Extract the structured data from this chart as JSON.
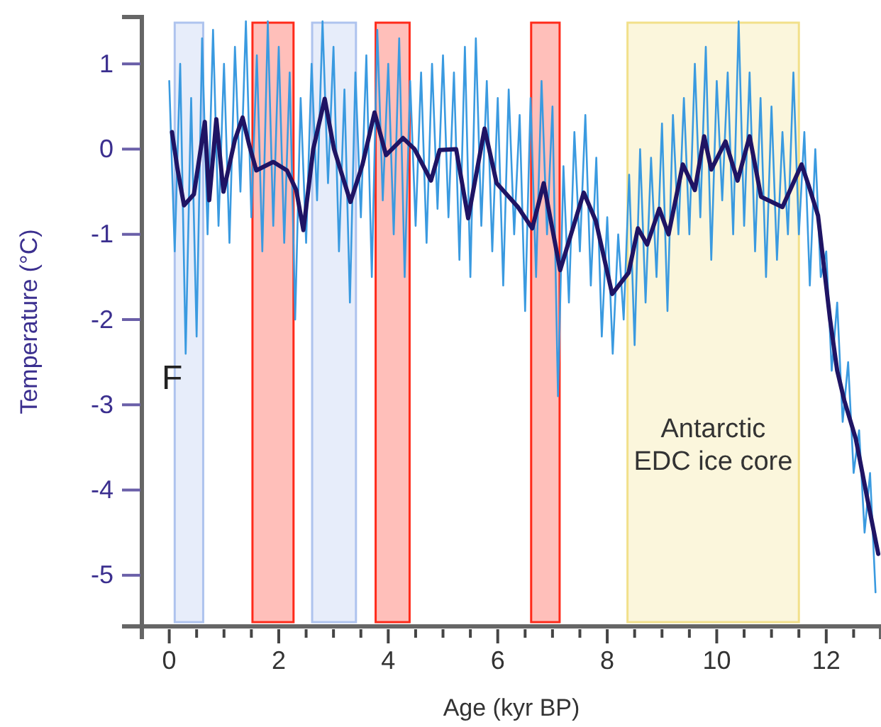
{
  "chart_data": {
    "type": "line",
    "xlabel": "Age (kyr BP)",
    "ylabel": "Temperature (°C)",
    "xlim": [
      -0.5,
      13
    ],
    "ylim": [
      -5.6,
      1.55
    ],
    "xticks": [
      0,
      {
        "value": 0.5,
        "label": null
      },
      {
        "value": 1,
        "label": null
      },
      {
        "value": 1.5,
        "label": null
      },
      2,
      {
        "value": 2.5,
        "label": null
      },
      {
        "value": 3,
        "label": null
      },
      {
        "value": 3.5,
        "label": null
      },
      4,
      {
        "value": 4.5,
        "label": null
      },
      {
        "value": 5,
        "label": null
      },
      {
        "value": 5.5,
        "label": null
      },
      6,
      {
        "value": 6.5,
        "label": null
      },
      {
        "value": 7,
        "label": null
      },
      {
        "value": 7.5,
        "label": null
      },
      8,
      {
        "value": 8.5,
        "label": null
      },
      {
        "value": 9,
        "label": null
      },
      {
        "value": 9.5,
        "label": null
      },
      10,
      {
        "value": 10.5,
        "label": null
      },
      {
        "value": 11,
        "label": null
      },
      {
        "value": 11.5,
        "label": null
      },
      12,
      {
        "value": 12.5,
        "label": null
      }
    ],
    "yticks": [
      -5,
      -4,
      -3,
      -2,
      -1,
      0,
      1
    ],
    "bands": [
      {
        "axis": "x",
        "from": 0.1,
        "to": 0.62,
        "color": "#aec3ee"
      },
      {
        "axis": "x",
        "from": 2.61,
        "to": 3.41,
        "color": "#aec3ee"
      },
      {
        "axis": "x",
        "from": 1.52,
        "to": 2.27,
        "color": "#ff2a1a"
      },
      {
        "axis": "x",
        "from": 3.77,
        "to": 4.39,
        "color": "#ff2a1a"
      },
      {
        "axis": "x",
        "from": 6.61,
        "to": 7.13,
        "color": "#ff2a1a"
      },
      {
        "axis": "x",
        "from": 8.37,
        "to": 11.5,
        "color": "#f2e08a",
        "label": "Antarctic\nEDC ice core"
      }
    ],
    "annotations": [
      "F"
    ],
    "series": [
      {
        "color": "#3a9ae0",
        "x": [
          0.0,
          0.1,
          0.2,
          0.3,
          0.4,
          0.5,
          0.6,
          0.7,
          0.8,
          0.9,
          1.0,
          1.1,
          1.2,
          1.3,
          1.4,
          1.5,
          1.6,
          1.7,
          1.8,
          1.9,
          2.0,
          2.1,
          2.2,
          2.3,
          2.4,
          2.5,
          2.6,
          2.7,
          2.8,
          2.9,
          3.0,
          3.1,
          3.2,
          3.3,
          3.4,
          3.5,
          3.6,
          3.7,
          3.8,
          3.9,
          4.0,
          4.1,
          4.2,
          4.3,
          4.4,
          4.5,
          4.6,
          4.7,
          4.8,
          4.9,
          5.0,
          5.1,
          5.2,
          5.3,
          5.4,
          5.5,
          5.6,
          5.7,
          5.8,
          5.9,
          6.0,
          6.1,
          6.2,
          6.3,
          6.4,
          6.5,
          6.6,
          6.7,
          6.8,
          6.9,
          7.0,
          7.1,
          7.2,
          7.3,
          7.4,
          7.5,
          7.6,
          7.7,
          7.8,
          7.9,
          8.0,
          8.1,
          8.2,
          8.3,
          8.4,
          8.5,
          8.6,
          8.7,
          8.8,
          8.9,
          9.0,
          9.1,
          9.2,
          9.3,
          9.4,
          9.5,
          9.6,
          9.7,
          9.8,
          9.9,
          10.0,
          10.1,
          10.2,
          10.3,
          10.4,
          10.5,
          10.6,
          10.7,
          10.8,
          10.9,
          11.0,
          11.1,
          11.2,
          11.3,
          11.4,
          11.5,
          11.6,
          11.7,
          11.8,
          11.9,
          12.0,
          12.1,
          12.2,
          12.3,
          12.4,
          12.5,
          12.6,
          12.7,
          12.8,
          12.9
        ],
        "values": [
          0.8,
          -1.2,
          1.0,
          -2.4,
          0.6,
          -2.2,
          1.3,
          -1.0,
          1.4,
          -0.9,
          1.0,
          -1.1,
          1.2,
          -0.5,
          1.5,
          -0.8,
          1.1,
          -1.2,
          1.5,
          -0.9,
          1.2,
          -1.1,
          0.9,
          -2.0,
          0.6,
          -1.1,
          1.0,
          -0.6,
          1.5,
          -0.4,
          1.2,
          -1.2,
          0.7,
          -1.8,
          0.9,
          -0.8,
          1.1,
          -1.5,
          1.4,
          -0.6,
          1.0,
          -1.0,
          1.3,
          -1.5,
          0.8,
          -0.9,
          0.9,
          -1.1,
          1.0,
          -0.7,
          1.1,
          -0.8,
          0.9,
          -1.3,
          1.2,
          -1.5,
          1.3,
          -0.9,
          0.8,
          -1.2,
          0.6,
          -1.6,
          0.7,
          -1.0,
          0.4,
          -1.9,
          0.6,
          -1.5,
          0.8,
          -1.0,
          0.5,
          -2.9,
          -0.2,
          -1.8,
          0.2,
          -1.2,
          0.4,
          -1.6,
          -0.1,
          -2.2,
          -0.8,
          -2.4,
          -1.0,
          -2.0,
          -0.3,
          -2.3,
          0.0,
          -1.8,
          -0.1,
          -1.5,
          0.3,
          -1.9,
          0.4,
          -1.0,
          0.6,
          -1.0,
          1.0,
          -0.8,
          1.2,
          -1.3,
          0.8,
          -0.6,
          0.9,
          -1.0,
          1.5,
          -0.9,
          0.9,
          -1.2,
          0.6,
          -1.5,
          0.5,
          -1.3,
          0.2,
          -1.0,
          0.9,
          -1.0,
          0.2,
          -1.6,
          0.0,
          -1.5,
          -1.2,
          -2.6,
          -1.8,
          -3.2,
          -2.5,
          -3.8,
          -3.3,
          -4.5,
          -3.8,
          -5.2
        ]
      },
      {
        "color": "#1f1464",
        "x": [
          0.05,
          0.15,
          0.27,
          0.45,
          0.65,
          0.73,
          0.86,
          0.99,
          1.2,
          1.34,
          1.46,
          1.59,
          1.9,
          2.15,
          2.32,
          2.45,
          2.63,
          2.84,
          3.01,
          3.31,
          3.53,
          3.75,
          3.96,
          4.27,
          4.48,
          4.78,
          4.94,
          5.24,
          5.46,
          5.76,
          5.98,
          6.37,
          6.63,
          6.84,
          7.14,
          7.31,
          7.57,
          7.79,
          8.09,
          8.39,
          8.56,
          8.73,
          8.95,
          9.12,
          9.38,
          9.6,
          9.77,
          9.9,
          10.16,
          10.38,
          10.6,
          10.81,
          11.2,
          11.55,
          11.68,
          11.85,
          12.07,
          12.2,
          12.33,
          12.54,
          12.75,
          12.95
        ],
        "values": [
          0.2,
          -0.23,
          -0.66,
          -0.53,
          0.32,
          -0.6,
          0.35,
          -0.5,
          0.11,
          0.37,
          0.05,
          -0.25,
          -0.15,
          -0.25,
          -0.48,
          -0.95,
          0.0,
          0.59,
          0.0,
          -0.62,
          -0.18,
          0.43,
          -0.07,
          0.13,
          0.0,
          -0.37,
          -0.01,
          0.0,
          -0.81,
          0.24,
          -0.4,
          -0.68,
          -0.93,
          -0.4,
          -1.42,
          -1.06,
          -0.51,
          -0.84,
          -1.7,
          -1.45,
          -0.93,
          -1.12,
          -0.7,
          -1.0,
          -0.18,
          -0.48,
          0.15,
          -0.24,
          0.09,
          -0.37,
          0.15,
          -0.56,
          -0.68,
          -0.18,
          -0.43,
          -0.78,
          -2.0,
          -2.6,
          -2.95,
          -3.4,
          -4.1,
          -4.75
        ]
      }
    ]
  }
}
